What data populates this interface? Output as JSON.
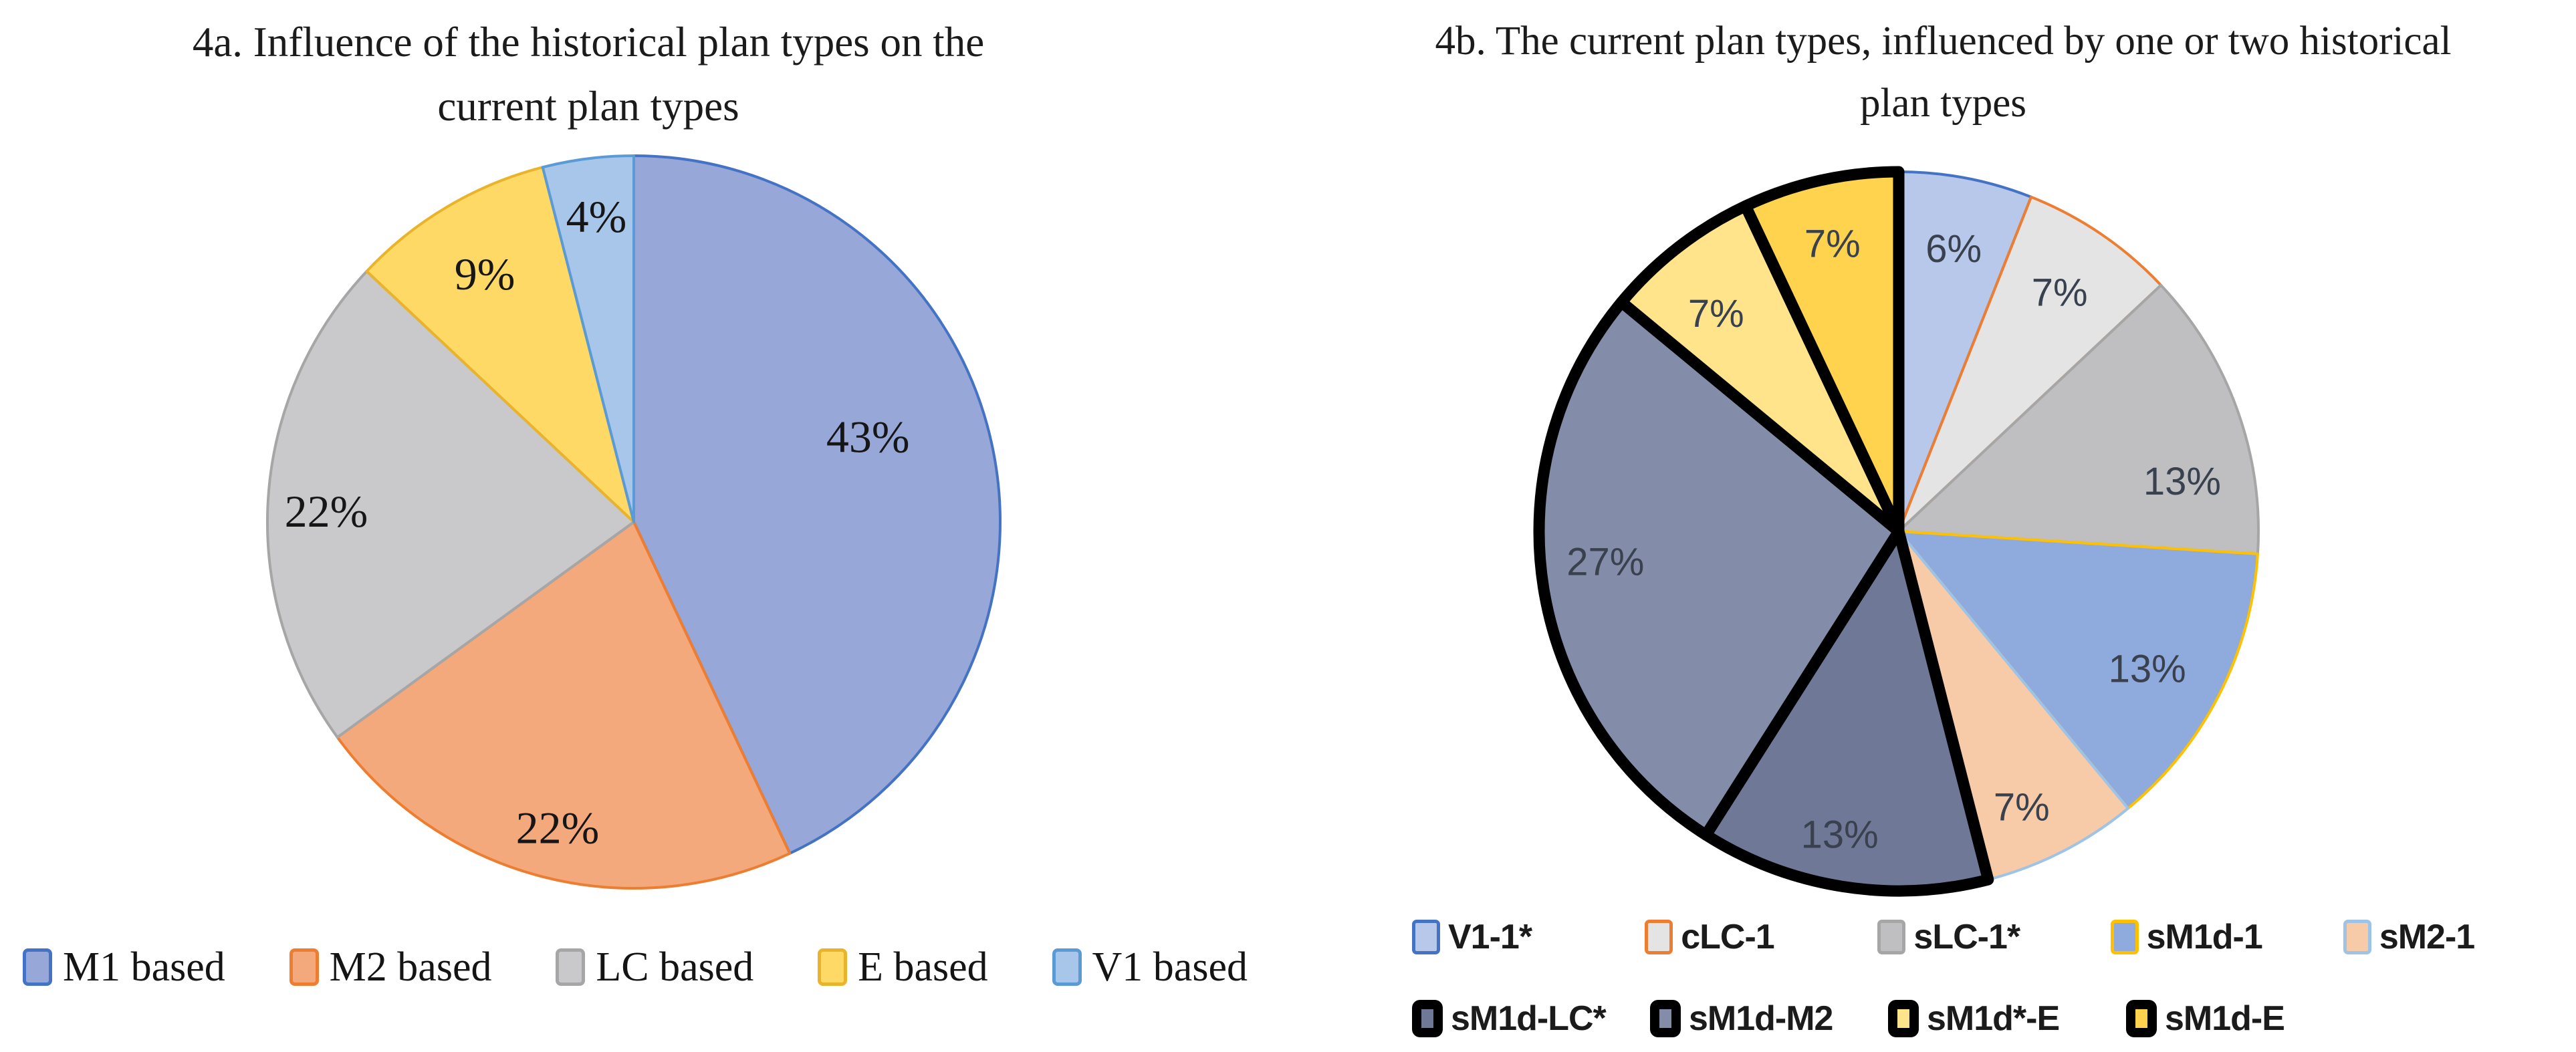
{
  "chart_data": [
    {
      "type": "pie",
      "panel": "4a",
      "title": "4a. Influence of the historical plan types on the current plan types",
      "title_lines": [
        "4a. Influence of the historical plan types on the",
        "current plan types"
      ],
      "direction": "clockwise",
      "start_angle_deg": 0,
      "legend_position": "bottom",
      "label_color": "#161616",
      "slices": [
        {
          "label": "M1 based",
          "value_pct": 43,
          "data_label": "43%",
          "fill": "#97A7D7",
          "border": "#4472C4",
          "border_style": "thin",
          "legend_row": 0,
          "label_angle_deg": 70,
          "label_radius_frac": 0.68
        },
        {
          "label": "M2 based",
          "value_pct": 22,
          "data_label": "22%",
          "fill": "#F4A97D",
          "border": "#ED7D31",
          "border_style": "thin",
          "legend_row": 0,
          "label_angle_deg": 194,
          "label_radius_frac": 0.86
        },
        {
          "label": "LC based",
          "value_pct": 22,
          "data_label": "22%",
          "fill": "#C9C9CB",
          "border": "#A6A6A6",
          "border_style": "thin",
          "legend_row": 0,
          "label_angle_deg": 272,
          "label_radius_frac": 0.84
        },
        {
          "label": "E based",
          "value_pct": 9,
          "data_label": "9%",
          "fill": "#FFD966",
          "border": "#E9B32A",
          "border_style": "thin",
          "legend_row": 0,
          "label_angle_deg": 329,
          "label_radius_frac": 0.79
        },
        {
          "label": "V1 based",
          "value_pct": 4,
          "data_label": "4%",
          "fill": "#A8C6E9",
          "border": "#5B9BD5",
          "border_style": "thin",
          "legend_row": 0,
          "label_angle_deg": 353,
          "label_radius_frac": 0.84
        }
      ]
    },
    {
      "type": "pie",
      "panel": "4b",
      "title": "4b. The current plan types, influenced by one or two historical plan types",
      "title_lines": [
        "4b. The current plan types, influenced by one or two historical",
        "plan types"
      ],
      "direction": "clockwise",
      "start_angle_deg": 0,
      "legend_position": "bottom",
      "label_color": "#39404E",
      "slices": [
        {
          "label": "V1-1*",
          "value_pct": 6,
          "data_label": "6%",
          "fill": "#B7C8EA",
          "border": "#4472C4",
          "border_style": "thin",
          "legend_row": 0,
          "label_angle_deg": 11,
          "label_radius_frac": 0.8
        },
        {
          "label": "cLC-1",
          "value_pct": 7,
          "data_label": "7%",
          "fill": "#E4E4E5",
          "border": "#ED7D31",
          "border_style": "thin",
          "legend_row": 0,
          "label_angle_deg": 34,
          "label_radius_frac": 0.8
        },
        {
          "label": "sLC-1*",
          "value_pct": 13,
          "data_label": "13%",
          "fill": "#BFBFC2",
          "border": "#A6A6A6",
          "border_style": "thin",
          "legend_row": 0,
          "label_angle_deg": 80,
          "label_radius_frac": 0.8
        },
        {
          "label": "sM1d-1",
          "value_pct": 13,
          "data_label": "13%",
          "fill": "#8FAADC",
          "border": "#FFC000",
          "border_style": "thin",
          "legend_row": 0,
          "label_angle_deg": 119,
          "label_radius_frac": 0.79
        },
        {
          "label": "sM2-1",
          "value_pct": 7,
          "data_label": "7%",
          "fill": "#F7CAA8",
          "border": "#9DC3E6",
          "border_style": "thin",
          "legend_row": 0,
          "label_angle_deg": 156,
          "label_radius_frac": 0.84
        },
        {
          "label": "sM1d-LC*",
          "value_pct": 13,
          "data_label": "13%",
          "fill": "#6F7997",
          "border": "#000000",
          "border_style": "thick",
          "legend_row": 1,
          "label_angle_deg": 191,
          "label_radius_frac": 0.86
        },
        {
          "label": "sM1d-M2",
          "value_pct": 27,
          "data_label": "27%",
          "fill": "#838CA8",
          "border": "#000000",
          "border_style": "thick",
          "legend_row": 1,
          "label_angle_deg": 264,
          "label_radius_frac": 0.82
        },
        {
          "label": "sM1d*-E",
          "value_pct": 7,
          "data_label": "7%",
          "fill": "#FFE48C",
          "border": "#000000",
          "border_style": "thick",
          "legend_row": 1,
          "label_angle_deg": 320,
          "label_radius_frac": 0.79
        },
        {
          "label": "sM1d-E",
          "value_pct": 7,
          "data_label": "7%",
          "fill": "#FFD34D",
          "border": "#000000",
          "border_style": "thick",
          "legend_row": 1,
          "label_angle_deg": 347,
          "label_radius_frac": 0.82
        }
      ]
    }
  ]
}
